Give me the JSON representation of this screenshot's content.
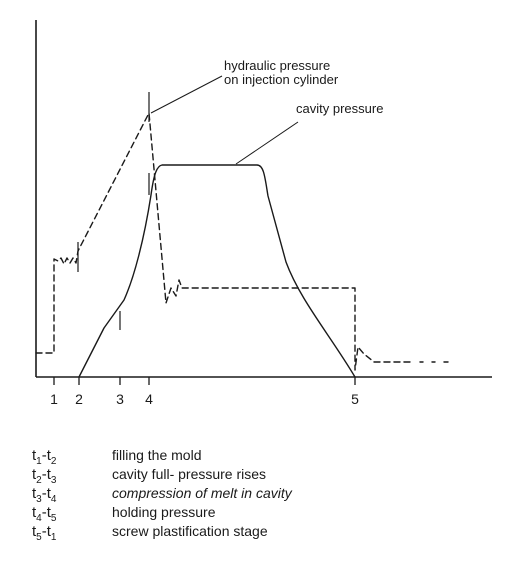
{
  "annotations": {
    "hydraulic_line1": "hydraulic pressure",
    "hydraulic_line2": "on injection cylinder",
    "cavity": "cavity pressure"
  },
  "tick_labels": [
    "1",
    "2",
    "3",
    "4",
    "5"
  ],
  "legend": [
    {
      "a": "1",
      "b": "2",
      "desc": "filling the mold",
      "italic": false
    },
    {
      "a": "2",
      "b": "3",
      "desc": "cavity full- pressure rises",
      "italic": false
    },
    {
      "a": "3",
      "b": "4",
      "desc": "compression of melt in cavity",
      "italic": true
    },
    {
      "a": "4",
      "b": "5",
      "desc": "holding pressure",
      "italic": false
    },
    {
      "a": "5",
      "b": "1",
      "desc": "screw plastification stage",
      "italic": false
    }
  ]
}
